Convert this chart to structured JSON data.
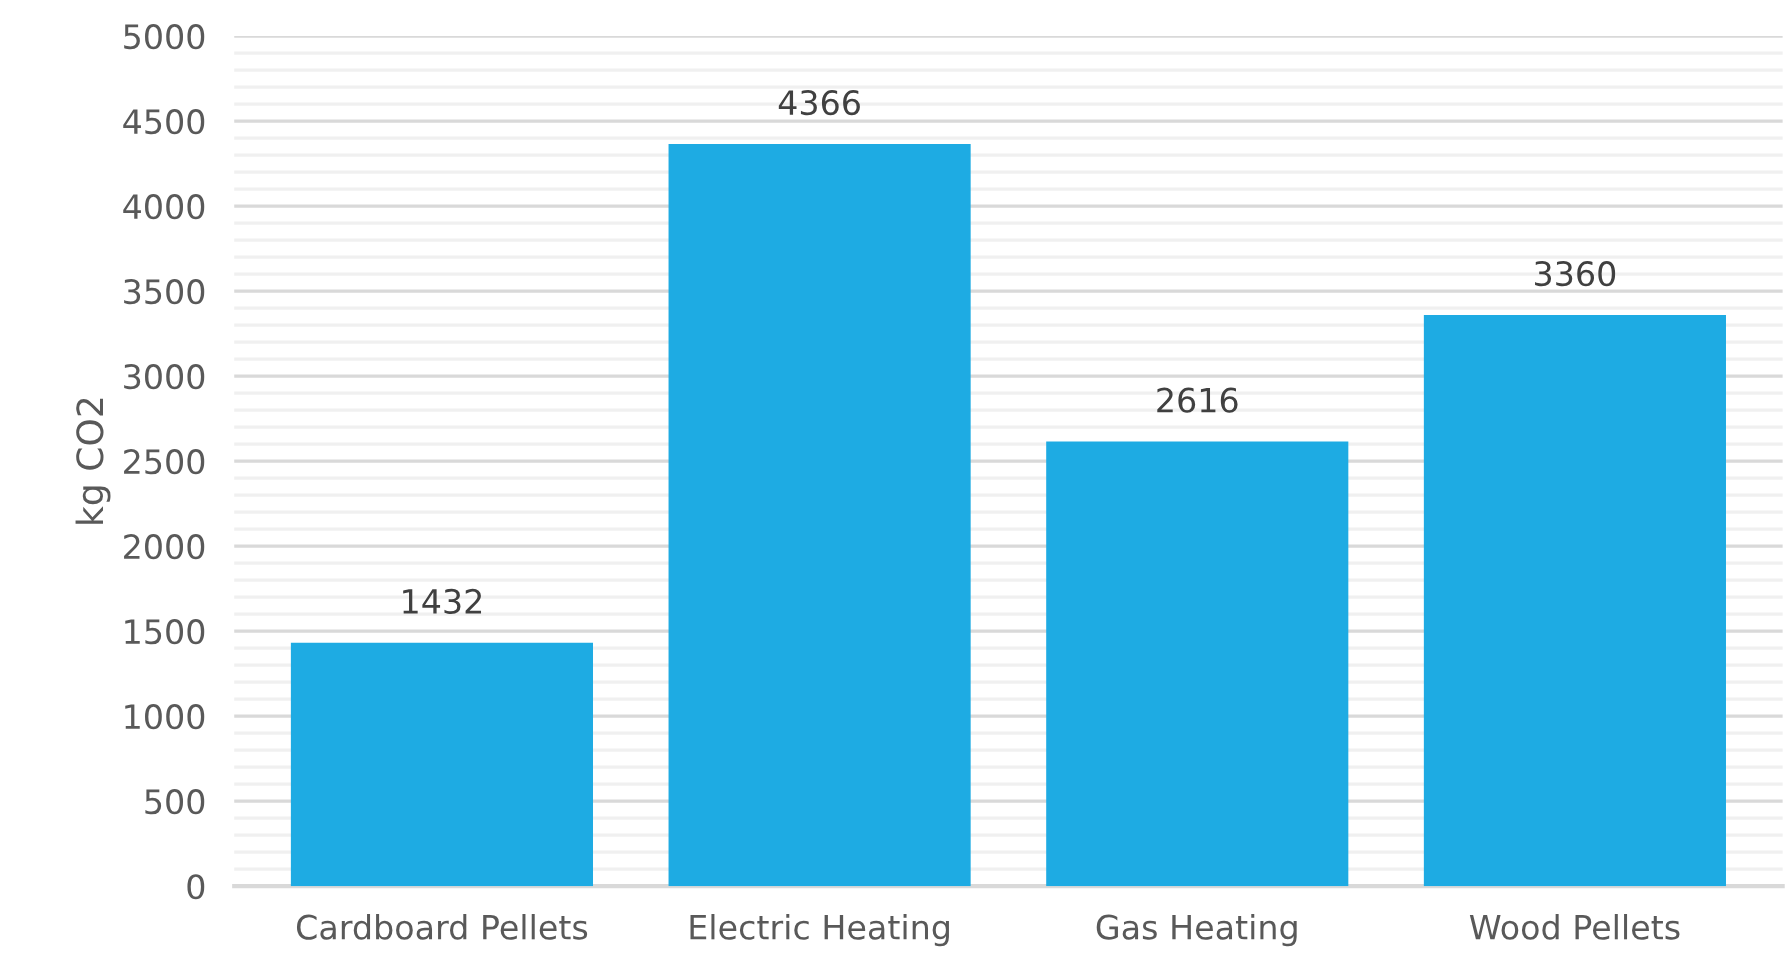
{
  "chart_data": {
    "type": "bar",
    "ylabel": "kg CO2",
    "categories": [
      "Cardboard Pellets",
      "Electric Heating",
      "Gas Heating",
      "Wood Pellets"
    ],
    "values": [
      1432,
      4366,
      2616,
      3360
    ],
    "color": "#1eabe3",
    "ylim": [
      0,
      5000
    ],
    "yticks": [
      0,
      500,
      1000,
      1500,
      2000,
      2500,
      3000,
      3500,
      4000,
      4500,
      5000
    ],
    "grid": "y",
    "data_labels": true,
    "legend": false
  }
}
